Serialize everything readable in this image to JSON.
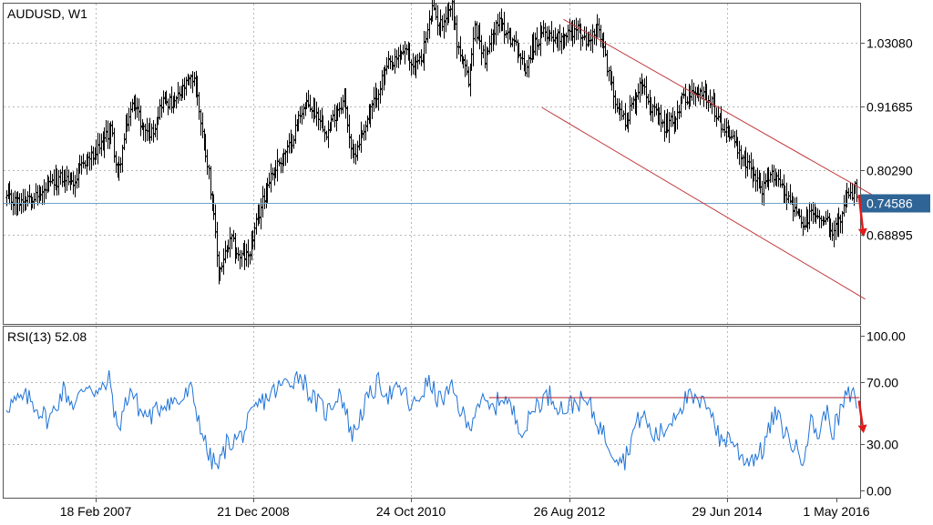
{
  "chart_data": [
    {
      "type": "bar",
      "subtype": "ohlc",
      "title": "AUDUSD, W1",
      "y_ticks": [
        "1.03080",
        "0.91685",
        "0.80290",
        "0.68895"
      ],
      "y_tick_values": [
        1.0308,
        0.91685,
        0.8029,
        0.68895
      ],
      "ylim": [
        0.53,
        1.1
      ],
      "x_ticks": [
        "18 Feb 2007",
        "21 Dec 2008",
        "24 Oct 2010",
        "26 Aug 2012",
        "29 Jun 2014",
        "1 May 2016"
      ],
      "grid": true,
      "current_price": {
        "label": "0.74586",
        "value": 0.74586,
        "color": "#2f6496",
        "line_color": "#6fa3c8"
      },
      "bar_color": "#000000",
      "channel": {
        "color": "#c0393b",
        "upper": [
          [
            "2012-11-15",
            1.072
          ],
          [
            "2016-09-01",
            0.745
          ]
        ],
        "lower": [
          [
            "2012-08-15",
            0.915
          ],
          [
            "2016-06-01",
            0.574
          ]
        ]
      },
      "forecast_arrow": {
        "color": "#e11a1a",
        "from": [
          "2016-05-05",
          0.76
        ],
        "to": [
          "2016-05-25",
          0.685
        ]
      },
      "price_anchors": [
        [
          "2006-05-01",
          0.755
        ],
        [
          "2006-06-15",
          0.745
        ],
        [
          "2006-08-01",
          0.76
        ],
        [
          "2006-09-15",
          0.755
        ],
        [
          "2006-11-01",
          0.775
        ],
        [
          "2006-12-20",
          0.79
        ],
        [
          "2007-02-18",
          0.785
        ],
        [
          "2007-04-01",
          0.82
        ],
        [
          "2007-05-15",
          0.83
        ],
        [
          "2007-06-15",
          0.85
        ],
        [
          "2007-07-25",
          0.88
        ],
        [
          "2007-08-20",
          0.79
        ],
        [
          "2007-10-01",
          0.89
        ],
        [
          "2007-11-01",
          0.93
        ],
        [
          "2007-12-01",
          0.88
        ],
        [
          "2008-01-15",
          0.87
        ],
        [
          "2008-03-01",
          0.93
        ],
        [
          "2008-04-15",
          0.92
        ],
        [
          "2008-06-01",
          0.95
        ],
        [
          "2008-07-15",
          0.97
        ],
        [
          "2008-08-15",
          0.88
        ],
        [
          "2008-09-15",
          0.8
        ],
        [
          "2008-10-10",
          0.7
        ],
        [
          "2008-10-27",
          0.62
        ],
        [
          "2008-12-01",
          0.66
        ],
        [
          "2008-12-21",
          0.68
        ],
        [
          "2009-01-20",
          0.65
        ],
        [
          "2009-03-01",
          0.65
        ],
        [
          "2009-04-15",
          0.72
        ],
        [
          "2009-06-01",
          0.79
        ],
        [
          "2009-07-15",
          0.82
        ],
        [
          "2009-09-01",
          0.85
        ],
        [
          "2009-10-15",
          0.91
        ],
        [
          "2009-11-15",
          0.92
        ],
        [
          "2010-01-01",
          0.9
        ],
        [
          "2010-02-05",
          0.87
        ],
        [
          "2010-03-15",
          0.91
        ],
        [
          "2010-04-20",
          0.93
        ],
        [
          "2010-05-25",
          0.82
        ],
        [
          "2010-06-15",
          0.85
        ],
        [
          "2010-08-01",
          0.9
        ],
        [
          "2010-09-15",
          0.95
        ],
        [
          "2010-10-24",
          0.99
        ],
        [
          "2010-11-15",
          0.99
        ],
        [
          "2010-12-31",
          1.02
        ],
        [
          "2011-02-01",
          0.99
        ],
        [
          "2011-03-15",
          1.0
        ],
        [
          "2011-05-01",
          1.09
        ],
        [
          "2011-06-01",
          1.06
        ],
        [
          "2011-07-27",
          1.1
        ],
        [
          "2011-08-15",
          1.03
        ],
        [
          "2011-10-04",
          0.96
        ],
        [
          "2011-10-30",
          1.06
        ],
        [
          "2011-12-15",
          1.0
        ],
        [
          "2012-02-01",
          1.07
        ],
        [
          "2012-03-15",
          1.05
        ],
        [
          "2012-05-01",
          1.02
        ],
        [
          "2012-06-01",
          0.98
        ],
        [
          "2012-07-01",
          1.02
        ],
        [
          "2012-08-26",
          1.05
        ],
        [
          "2012-10-15",
          1.04
        ],
        [
          "2012-12-15",
          1.05
        ],
        [
          "2013-01-15",
          1.055
        ],
        [
          "2013-02-15",
          1.03
        ],
        [
          "2013-04-11",
          1.055
        ],
        [
          "2013-05-15",
          1.0
        ],
        [
          "2013-06-15",
          0.94
        ],
        [
          "2013-08-05",
          0.89
        ],
        [
          "2013-09-15",
          0.93
        ],
        [
          "2013-10-20",
          0.965
        ],
        [
          "2013-11-30",
          0.91
        ],
        [
          "2014-01-20",
          0.88
        ],
        [
          "2014-03-01",
          0.895
        ],
        [
          "2014-04-15",
          0.935
        ],
        [
          "2014-06-29",
          0.94
        ],
        [
          "2014-07-30",
          0.935
        ],
        [
          "2014-09-15",
          0.89
        ],
        [
          "2014-10-15",
          0.875
        ],
        [
          "2014-11-15",
          0.86
        ],
        [
          "2014-12-15",
          0.82
        ],
        [
          "2015-01-20",
          0.81
        ],
        [
          "2015-03-15",
          0.77
        ],
        [
          "2015-05-10",
          0.8
        ],
        [
          "2015-06-15",
          0.77
        ],
        [
          "2015-08-01",
          0.735
        ],
        [
          "2015-09-07",
          0.7
        ],
        [
          "2015-10-15",
          0.73
        ],
        [
          "2015-11-15",
          0.715
        ],
        [
          "2015-12-15",
          0.725
        ],
        [
          "2016-01-15",
          0.695
        ],
        [
          "2016-02-15",
          0.715
        ],
        [
          "2016-03-15",
          0.755
        ],
        [
          "2016-04-20",
          0.77
        ],
        [
          "2016-05-01",
          0.745
        ]
      ]
    },
    {
      "type": "line",
      "title": "RSI(13) 52.08",
      "y_ticks": [
        "100.00",
        "70.00",
        "30.00",
        "0.00"
      ],
      "y_tick_values": [
        100,
        70,
        30,
        0
      ],
      "ylim": [
        0,
        100
      ],
      "grid": true,
      "line_color": "#1e73d8",
      "resistance": {
        "color": "#b01c2e",
        "value": 60,
        "from": "2012-01-01",
        "to": "2016-05-08"
      },
      "forecast_arrow": {
        "color": "#e11a1a",
        "from": [
          "2016-05-05",
          58
        ],
        "to": [
          "2016-05-25",
          37
        ]
      },
      "rsi_anchors": [
        [
          "2006-05-01",
          55
        ],
        [
          "2006-08-01",
          60
        ],
        [
          "2006-11-01",
          45
        ],
        [
          "2007-01-01",
          65
        ],
        [
          "2007-02-18",
          55
        ],
        [
          "2007-04-15",
          70
        ],
        [
          "2007-06-01",
          62
        ],
        [
          "2007-07-20",
          72
        ],
        [
          "2007-08-20",
          38
        ],
        [
          "2007-10-15",
          66
        ],
        [
          "2007-12-01",
          50
        ],
        [
          "2008-01-15",
          48
        ],
        [
          "2008-03-15",
          58
        ],
        [
          "2008-05-15",
          57
        ],
        [
          "2008-07-01",
          65
        ],
        [
          "2008-08-15",
          40
        ],
        [
          "2008-09-15",
          22
        ],
        [
          "2008-10-27",
          15
        ],
        [
          "2008-12-01",
          30
        ],
        [
          "2009-02-01",
          35
        ],
        [
          "2009-04-15",
          55
        ],
        [
          "2009-06-15",
          63
        ],
        [
          "2009-08-15",
          70
        ],
        [
          "2009-10-15",
          75
        ],
        [
          "2009-12-01",
          60
        ],
        [
          "2010-02-05",
          50
        ],
        [
          "2010-04-01",
          65
        ],
        [
          "2010-05-25",
          35
        ],
        [
          "2010-07-15",
          55
        ],
        [
          "2010-09-15",
          70
        ],
        [
          "2010-10-24",
          62
        ],
        [
          "2010-12-31",
          65
        ],
        [
          "2011-02-01",
          52
        ],
        [
          "2011-04-15",
          70
        ],
        [
          "2011-06-01",
          58
        ],
        [
          "2011-07-27",
          65
        ],
        [
          "2011-10-04",
          40
        ],
        [
          "2011-11-15",
          58
        ],
        [
          "2012-01-15",
          52
        ],
        [
          "2012-03-01",
          62
        ],
        [
          "2012-05-01",
          45
        ],
        [
          "2012-06-01",
          38
        ],
        [
          "2012-07-15",
          55
        ],
        [
          "2012-09-15",
          62
        ],
        [
          "2012-11-15",
          52
        ],
        [
          "2013-01-15",
          58
        ],
        [
          "2013-03-01",
          56
        ],
        [
          "2013-05-01",
          38
        ],
        [
          "2013-06-15",
          25
        ],
        [
          "2013-08-05",
          20
        ],
        [
          "2013-09-15",
          40
        ],
        [
          "2013-10-20",
          50
        ],
        [
          "2013-12-01",
          35
        ],
        [
          "2014-01-20",
          38
        ],
        [
          "2014-03-15",
          52
        ],
        [
          "2014-05-01",
          60
        ],
        [
          "2014-06-29",
          55
        ],
        [
          "2014-08-01",
          58
        ],
        [
          "2014-09-15",
          32
        ],
        [
          "2014-11-01",
          35
        ],
        [
          "2014-12-15",
          22
        ],
        [
          "2015-01-20",
          20
        ],
        [
          "2015-03-15",
          25
        ],
        [
          "2015-05-10",
          50
        ],
        [
          "2015-06-15",
          40
        ],
        [
          "2015-08-01",
          28
        ],
        [
          "2015-09-07",
          22
        ],
        [
          "2015-10-15",
          45
        ],
        [
          "2015-11-15",
          35
        ],
        [
          "2015-12-15",
          52
        ],
        [
          "2016-01-15",
          38
        ],
        [
          "2016-02-15",
          50
        ],
        [
          "2016-03-15",
          62
        ],
        [
          "2016-04-01",
          60
        ],
        [
          "2016-04-20",
          62
        ],
        [
          "2016-05-01",
          52
        ]
      ]
    }
  ]
}
